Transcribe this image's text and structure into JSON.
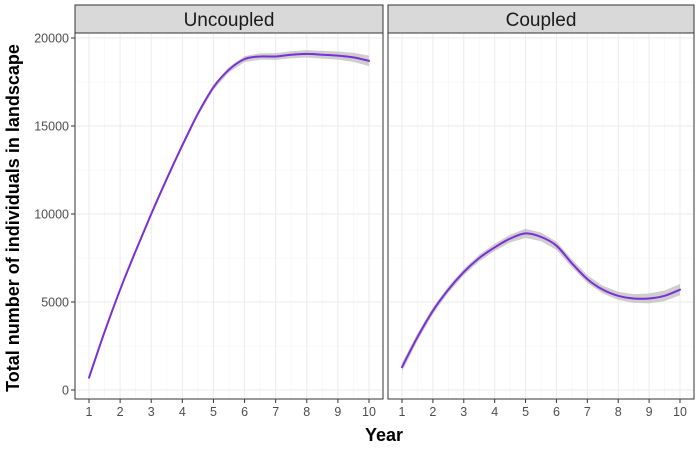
{
  "chart_data": {
    "type": "line",
    "xlabel": "Year",
    "ylabel": "Total number of individuals in landscape",
    "xlim": [
      1,
      10
    ],
    "ylim": [
      0,
      20000
    ],
    "x_ticks": [
      "1",
      "2",
      "3",
      "4",
      "5",
      "6",
      "7",
      "8",
      "9",
      "10"
    ],
    "y_ticks": [
      "0",
      "5000",
      "10000",
      "15000",
      "20000"
    ],
    "grid": true,
    "legend": "none",
    "colors": {
      "line": "#7b2fd4",
      "ribbon": "#bdbdbd",
      "strip": "#d9d9d9"
    },
    "panels": [
      {
        "strip_label": "Uncoupled",
        "x": [
          1,
          1.5,
          2,
          2.5,
          3,
          3.5,
          4,
          4.5,
          5,
          5.5,
          6,
          6.5,
          7,
          7.5,
          8,
          8.5,
          9,
          9.5,
          10
        ],
        "y": [
          700,
          3300,
          5700,
          7900,
          10000,
          12000,
          13900,
          15700,
          17200,
          18200,
          18800,
          18950,
          18950,
          19050,
          19100,
          19050,
          19000,
          18900,
          18700
        ],
        "ribbon_halfwidth": [
          150,
          130,
          120,
          120,
          120,
          120,
          130,
          140,
          150,
          160,
          170,
          180,
          190,
          200,
          210,
          220,
          230,
          260,
          300
        ]
      },
      {
        "strip_label": "Coupled",
        "x": [
          1,
          1.5,
          2,
          2.5,
          3,
          3.5,
          4,
          4.5,
          5,
          5.5,
          6,
          6.5,
          7,
          7.5,
          8,
          8.5,
          9,
          9.5,
          10
        ],
        "y": [
          1300,
          3000,
          4500,
          5700,
          6700,
          7500,
          8100,
          8600,
          8900,
          8700,
          8200,
          7200,
          6300,
          5700,
          5350,
          5200,
          5200,
          5350,
          5700
        ],
        "ribbon_halfwidth": [
          250,
          210,
          190,
          180,
          180,
          190,
          200,
          220,
          260,
          250,
          240,
          230,
          220,
          220,
          230,
          250,
          280,
          300,
          320
        ]
      }
    ]
  }
}
